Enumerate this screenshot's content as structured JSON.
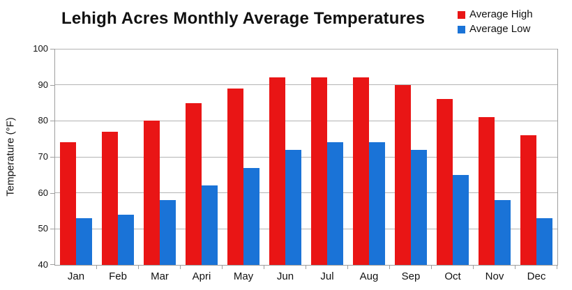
{
  "title": "Lehigh Acres Monthly Average Temperatures",
  "colors": {
    "average_high": "#e91515",
    "average_low": "#1a73d7",
    "gridline": "#b3b3b3",
    "axis": "#9e9e9e",
    "text": "#111111",
    "background": "#ffffff"
  },
  "chart_data": {
    "type": "bar",
    "title": "Lehigh Acres Monthly Average Temperatures",
    "xlabel": "",
    "ylabel": "Temperature (°F)",
    "ylim": [
      40,
      100
    ],
    "yticks": [
      40,
      50,
      60,
      70,
      80,
      90,
      100
    ],
    "grid": true,
    "legend_position": "top-right",
    "categories": [
      "Jan",
      "Feb",
      "Mar",
      "Apri",
      "May",
      "Jun",
      "Jul",
      "Aug",
      "Sep",
      "Oct",
      "Nov",
      "Dec"
    ],
    "series": [
      {
        "name": "Average High",
        "color": "#e91515",
        "values": [
          74,
          77,
          80,
          85,
          89,
          92,
          92,
          92,
          90,
          86,
          81,
          76
        ]
      },
      {
        "name": "Average Low",
        "color": "#1a73d7",
        "values": [
          53,
          54,
          58,
          62,
          67,
          72,
          74,
          74,
          72,
          65,
          58,
          53
        ]
      }
    ]
  }
}
